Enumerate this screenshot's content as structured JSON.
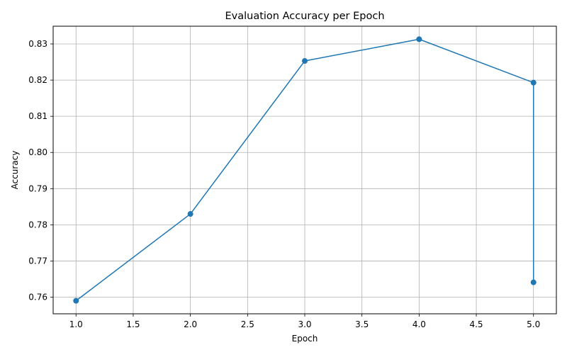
{
  "chart_data": {
    "type": "line",
    "title": "Evaluation Accuracy per Epoch",
    "xlabel": "Epoch",
    "ylabel": "Accuracy",
    "xlim": [
      0.8,
      5.2
    ],
    "ylim": [
      0.7554,
      0.8349
    ],
    "x_ticks": [
      1.0,
      1.5,
      2.0,
      2.5,
      3.0,
      3.5,
      4.0,
      4.5,
      5.0
    ],
    "x_tick_labels": [
      "1.0",
      "1.5",
      "2.0",
      "2.5",
      "3.0",
      "3.5",
      "4.0",
      "4.5",
      "5.0"
    ],
    "y_ticks": [
      0.76,
      0.77,
      0.78,
      0.79,
      0.8,
      0.81,
      0.82,
      0.83
    ],
    "y_tick_labels": [
      "0.76",
      "0.77",
      "0.78",
      "0.79",
      "0.80",
      "0.81",
      "0.82",
      "0.83"
    ],
    "grid": true,
    "legend": "none",
    "series": [
      {
        "color": "#1f77b4",
        "marker": "circle",
        "points": [
          {
            "x": 1.0,
            "y": 0.759
          },
          {
            "x": 2.0,
            "y": 0.783
          },
          {
            "x": 3.0,
            "y": 0.8253
          },
          {
            "x": 4.0,
            "y": 0.8313
          },
          {
            "x": 5.0,
            "y": 0.8193
          },
          {
            "x": 5.0,
            "y": 0.7641
          }
        ]
      }
    ]
  }
}
